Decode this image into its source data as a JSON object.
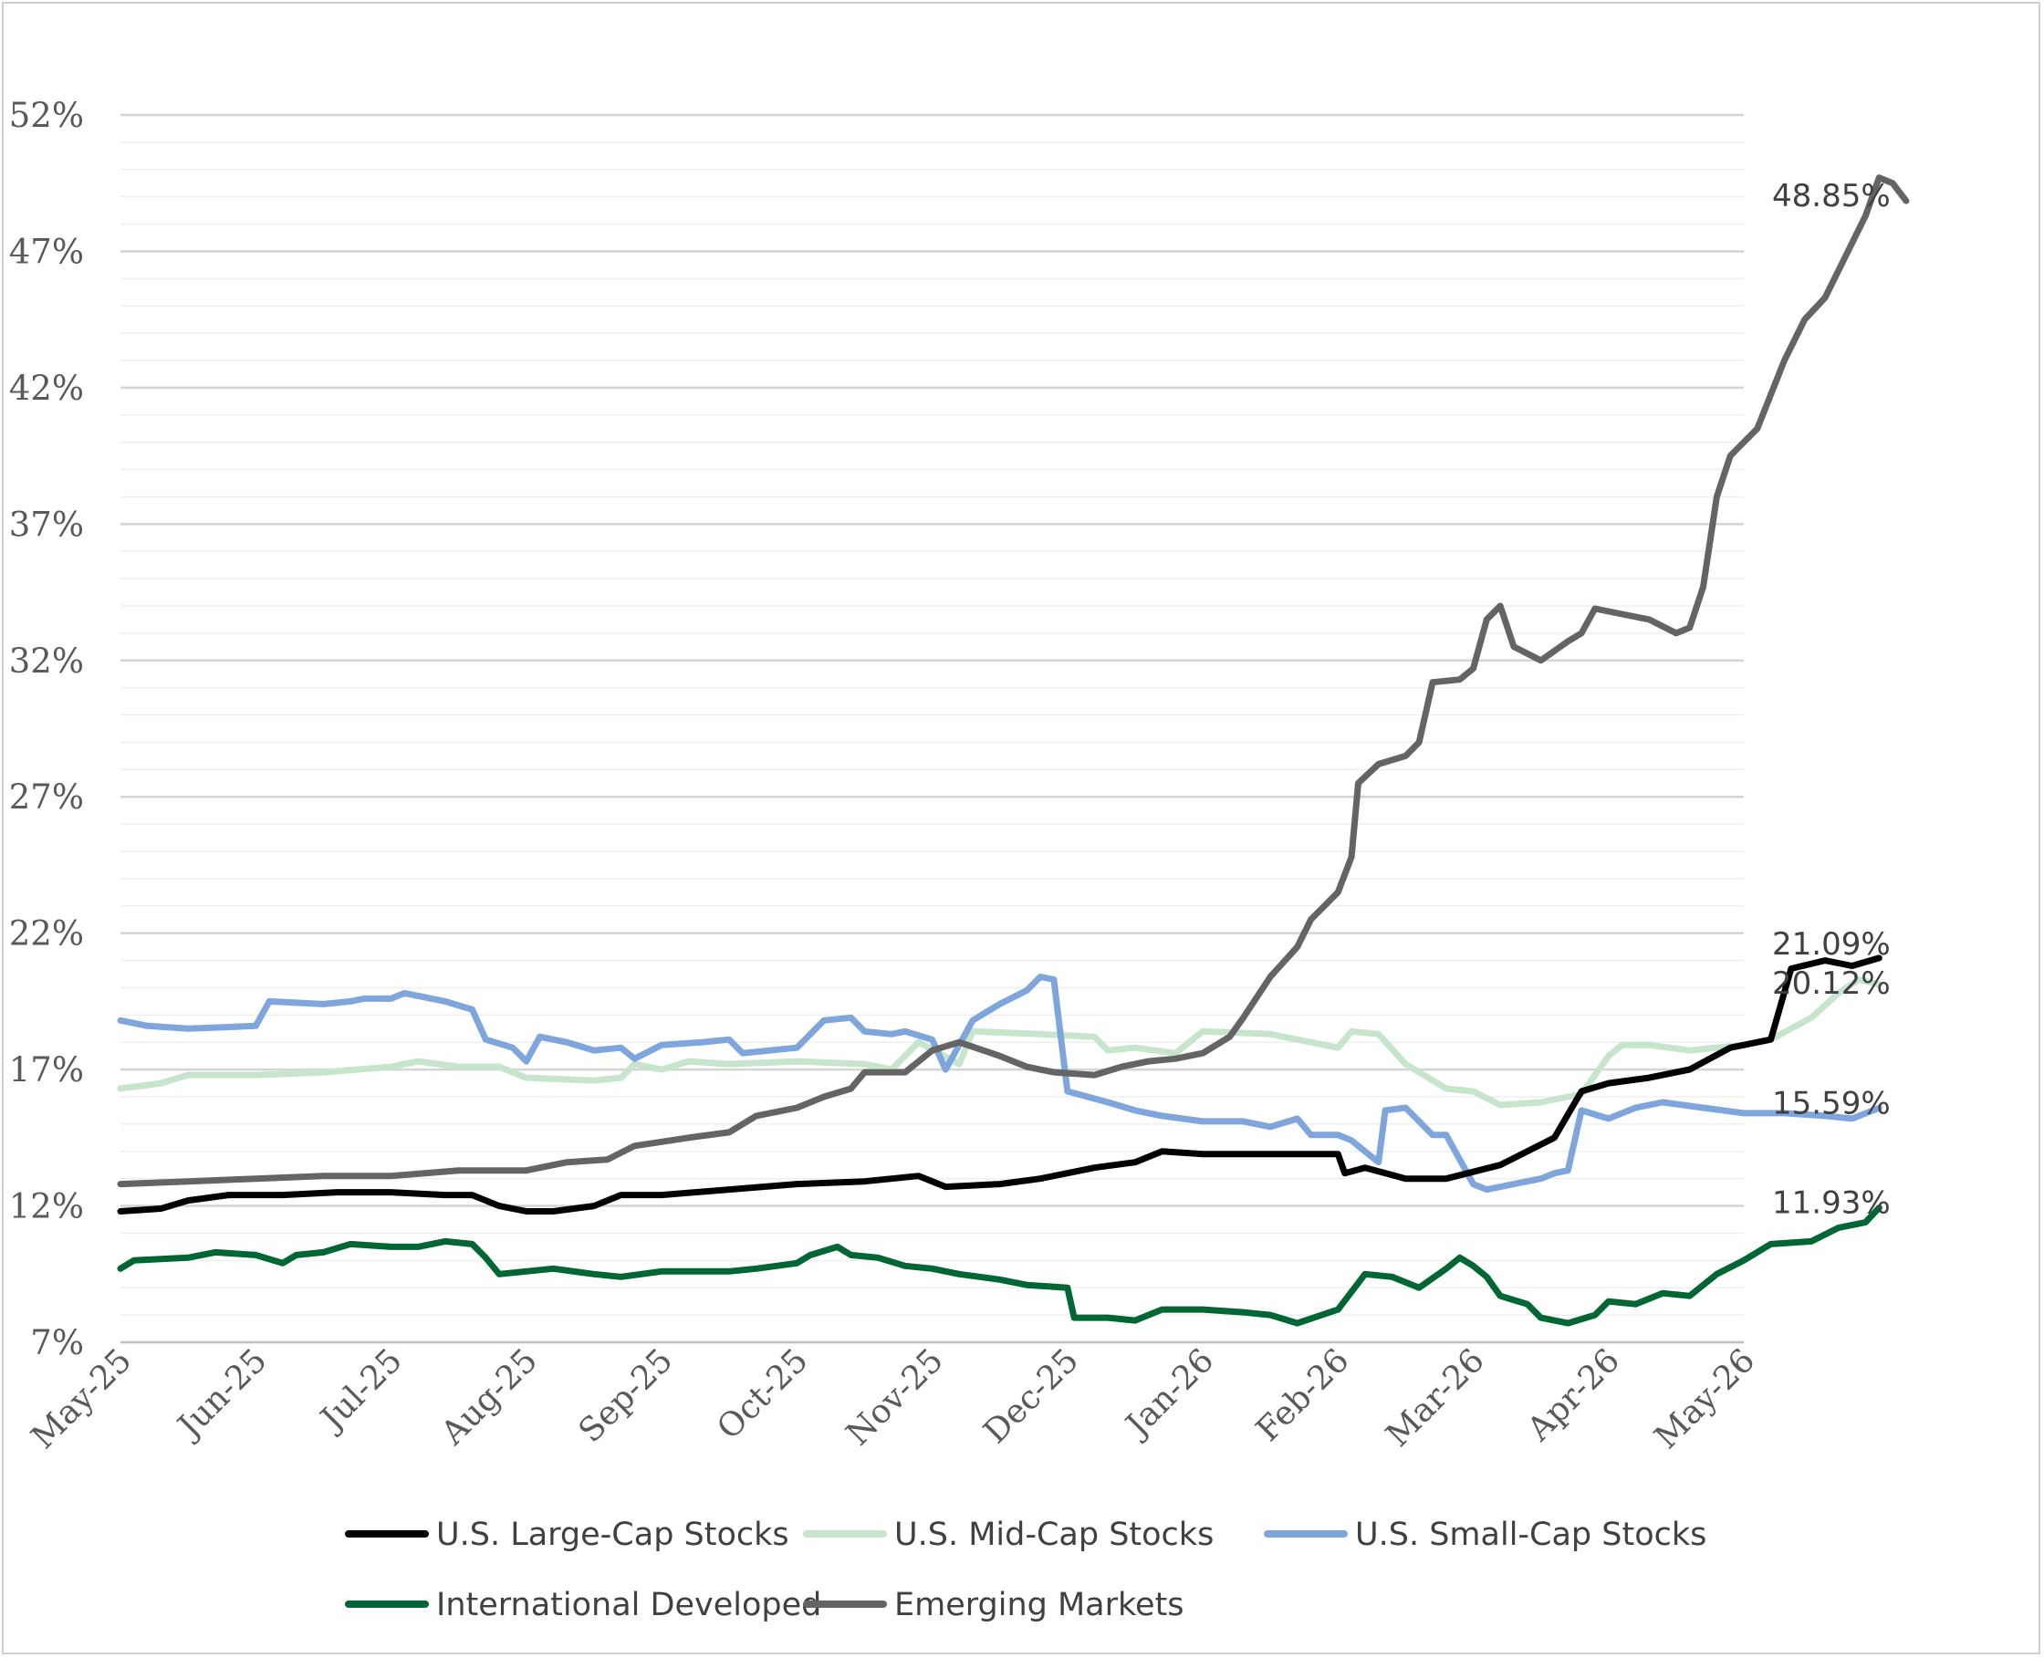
{
  "chart_data": {
    "type": "line",
    "title": "",
    "xlabel": "",
    "ylabel": "",
    "x_ticks": [
      "May-25",
      "Jun-25",
      "Jul-25",
      "Aug-25",
      "Sep-25",
      "Oct-25",
      "Nov-25",
      "Dec-25",
      "Jan-26",
      "Feb-26",
      "Mar-26",
      "Apr-26",
      "May-26"
    ],
    "y_ticks": [
      "7%",
      "12%",
      "17%",
      "22%",
      "27%",
      "32%",
      "37%",
      "42%",
      "47%",
      "52%"
    ],
    "ylim": [
      7,
      52
    ],
    "grid": true,
    "legend_position": "bottom",
    "series": [
      {
        "name": "U.S. Large-Cap Stocks",
        "color": "#000000",
        "end_label": "21.09%",
        "points": [
          [
            0,
            11.8
          ],
          [
            0.3,
            11.9
          ],
          [
            0.5,
            12.2
          ],
          [
            0.8,
            12.4
          ],
          [
            1.2,
            12.4
          ],
          [
            1.6,
            12.5
          ],
          [
            2.0,
            12.5
          ],
          [
            2.4,
            12.4
          ],
          [
            2.6,
            12.4
          ],
          [
            2.8,
            12.0
          ],
          [
            3.0,
            11.8
          ],
          [
            3.2,
            11.8
          ],
          [
            3.5,
            12.0
          ],
          [
            3.7,
            12.4
          ],
          [
            4.0,
            12.4
          ],
          [
            4.5,
            12.6
          ],
          [
            5.0,
            12.8
          ],
          [
            5.5,
            12.9
          ],
          [
            5.9,
            13.1
          ],
          [
            6.1,
            12.7
          ],
          [
            6.5,
            12.8
          ],
          [
            6.8,
            13.0
          ],
          [
            7.2,
            13.4
          ],
          [
            7.5,
            13.6
          ],
          [
            7.7,
            14.0
          ],
          [
            8.0,
            13.9
          ],
          [
            8.5,
            13.9
          ],
          [
            8.8,
            13.9
          ],
          [
            9.0,
            13.9
          ],
          [
            9.05,
            13.2
          ],
          [
            9.2,
            13.4
          ],
          [
            9.5,
            13.0
          ],
          [
            9.8,
            13.0
          ],
          [
            10.2,
            13.5
          ],
          [
            10.4,
            14.0
          ],
          [
            10.6,
            14.5
          ],
          [
            10.8,
            16.2
          ],
          [
            11.0,
            16.5
          ],
          [
            11.3,
            16.7
          ],
          [
            11.6,
            17.0
          ],
          [
            11.9,
            17.8
          ],
          [
            12.2,
            18.1
          ],
          [
            12.35,
            20.7
          ],
          [
            12.6,
            21.0
          ],
          [
            12.8,
            20.8
          ],
          [
            13.0,
            21.09
          ]
        ]
      },
      {
        "name": "U.S. Mid-Cap Stocks",
        "color": "#c6e5cc",
        "end_label": "20.12%",
        "points": [
          [
            0,
            16.3
          ],
          [
            0.3,
            16.5
          ],
          [
            0.5,
            16.8
          ],
          [
            1.0,
            16.8
          ],
          [
            1.5,
            16.9
          ],
          [
            2.0,
            17.1
          ],
          [
            2.2,
            17.3
          ],
          [
            2.5,
            17.1
          ],
          [
            2.8,
            17.1
          ],
          [
            3.0,
            16.7
          ],
          [
            3.5,
            16.6
          ],
          [
            3.7,
            16.7
          ],
          [
            3.8,
            17.2
          ],
          [
            4.0,
            17.0
          ],
          [
            4.2,
            17.3
          ],
          [
            4.5,
            17.2
          ],
          [
            5.0,
            17.3
          ],
          [
            5.5,
            17.2
          ],
          [
            5.7,
            17.0
          ],
          [
            5.9,
            18.0
          ],
          [
            6.2,
            17.2
          ],
          [
            6.3,
            18.4
          ],
          [
            6.8,
            18.3
          ],
          [
            7.2,
            18.2
          ],
          [
            7.3,
            17.7
          ],
          [
            7.5,
            17.8
          ],
          [
            7.8,
            17.6
          ],
          [
            8.0,
            18.4
          ],
          [
            8.5,
            18.3
          ],
          [
            8.8,
            18.0
          ],
          [
            9.0,
            17.8
          ],
          [
            9.1,
            18.4
          ],
          [
            9.3,
            18.3
          ],
          [
            9.5,
            17.2
          ],
          [
            9.8,
            16.3
          ],
          [
            10.0,
            16.2
          ],
          [
            10.2,
            15.7
          ],
          [
            10.5,
            15.8
          ],
          [
            10.8,
            16.1
          ],
          [
            11.0,
            17.5
          ],
          [
            11.1,
            17.9
          ],
          [
            11.3,
            17.9
          ],
          [
            11.6,
            17.7
          ],
          [
            12.0,
            17.9
          ],
          [
            12.2,
            18.1
          ],
          [
            12.5,
            18.9
          ],
          [
            12.7,
            19.8
          ],
          [
            12.85,
            20.3
          ],
          [
            13.0,
            20.12
          ]
        ]
      },
      {
        "name": "U.S. Small-Cap Stocks",
        "color": "#7ea6dc",
        "end_label": "15.59%",
        "points": [
          [
            0,
            18.8
          ],
          [
            0.2,
            18.6
          ],
          [
            0.5,
            18.5
          ],
          [
            1.0,
            18.6
          ],
          [
            1.1,
            19.5
          ],
          [
            1.5,
            19.4
          ],
          [
            1.7,
            19.5
          ],
          [
            1.8,
            19.6
          ],
          [
            2.0,
            19.6
          ],
          [
            2.1,
            19.8
          ],
          [
            2.3,
            19.6
          ],
          [
            2.4,
            19.5
          ],
          [
            2.6,
            19.2
          ],
          [
            2.7,
            18.1
          ],
          [
            2.9,
            17.8
          ],
          [
            3.0,
            17.3
          ],
          [
            3.1,
            18.2
          ],
          [
            3.3,
            18.0
          ],
          [
            3.5,
            17.7
          ],
          [
            3.7,
            17.8
          ],
          [
            3.8,
            17.4
          ],
          [
            4.0,
            17.9
          ],
          [
            4.3,
            18.0
          ],
          [
            4.5,
            18.1
          ],
          [
            4.6,
            17.6
          ],
          [
            5.0,
            17.8
          ],
          [
            5.2,
            18.8
          ],
          [
            5.4,
            18.9
          ],
          [
            5.5,
            18.4
          ],
          [
            5.7,
            18.3
          ],
          [
            5.8,
            18.4
          ],
          [
            6.0,
            18.1
          ],
          [
            6.1,
            17.0
          ],
          [
            6.3,
            18.8
          ],
          [
            6.5,
            19.4
          ],
          [
            6.7,
            19.9
          ],
          [
            6.8,
            20.4
          ],
          [
            6.9,
            20.3
          ],
          [
            7.0,
            16.2
          ],
          [
            7.3,
            15.8
          ],
          [
            7.5,
            15.5
          ],
          [
            7.7,
            15.3
          ],
          [
            8.0,
            15.1
          ],
          [
            8.3,
            15.1
          ],
          [
            8.5,
            14.9
          ],
          [
            8.7,
            15.2
          ],
          [
            8.8,
            14.6
          ],
          [
            9.0,
            14.6
          ],
          [
            9.1,
            14.4
          ],
          [
            9.2,
            14.0
          ],
          [
            9.3,
            13.6
          ],
          [
            9.35,
            15.5
          ],
          [
            9.5,
            15.6
          ],
          [
            9.7,
            14.6
          ],
          [
            9.8,
            14.6
          ],
          [
            10.0,
            12.8
          ],
          [
            10.1,
            12.6
          ],
          [
            10.3,
            12.8
          ],
          [
            10.5,
            13.0
          ],
          [
            10.6,
            13.2
          ],
          [
            10.7,
            13.3
          ],
          [
            10.8,
            15.5
          ],
          [
            11.0,
            15.2
          ],
          [
            11.2,
            15.6
          ],
          [
            11.4,
            15.8
          ],
          [
            11.7,
            15.6
          ],
          [
            12.0,
            15.4
          ],
          [
            12.3,
            15.4
          ],
          [
            12.6,
            15.3
          ],
          [
            12.8,
            15.2
          ],
          [
            13.0,
            15.59
          ]
        ]
      },
      {
        "name": "International Developed",
        "color": "#006633",
        "end_label": "11.93%",
        "points": [
          [
            0,
            9.7
          ],
          [
            0.1,
            10.0
          ],
          [
            0.5,
            10.1
          ],
          [
            0.7,
            10.3
          ],
          [
            1.0,
            10.2
          ],
          [
            1.2,
            9.9
          ],
          [
            1.3,
            10.2
          ],
          [
            1.5,
            10.3
          ],
          [
            1.7,
            10.6
          ],
          [
            2.0,
            10.5
          ],
          [
            2.2,
            10.5
          ],
          [
            2.4,
            10.7
          ],
          [
            2.6,
            10.6
          ],
          [
            2.7,
            10.1
          ],
          [
            2.8,
            9.5
          ],
          [
            3.0,
            9.6
          ],
          [
            3.2,
            9.7
          ],
          [
            3.5,
            9.5
          ],
          [
            3.7,
            9.4
          ],
          [
            4.0,
            9.6
          ],
          [
            4.5,
            9.6
          ],
          [
            4.7,
            9.7
          ],
          [
            5.0,
            9.9
          ],
          [
            5.1,
            10.2
          ],
          [
            5.3,
            10.5
          ],
          [
            5.4,
            10.2
          ],
          [
            5.6,
            10.1
          ],
          [
            5.8,
            9.8
          ],
          [
            6.0,
            9.7
          ],
          [
            6.2,
            9.5
          ],
          [
            6.5,
            9.3
          ],
          [
            6.7,
            9.1
          ],
          [
            7.0,
            9.0
          ],
          [
            7.05,
            7.9
          ],
          [
            7.3,
            7.9
          ],
          [
            7.5,
            7.8
          ],
          [
            7.7,
            8.2
          ],
          [
            8.0,
            8.2
          ],
          [
            8.3,
            8.1
          ],
          [
            8.5,
            8.0
          ],
          [
            8.7,
            7.7
          ],
          [
            9.0,
            8.2
          ],
          [
            9.2,
            9.5
          ],
          [
            9.4,
            9.4
          ],
          [
            9.6,
            9.0
          ],
          [
            9.8,
            9.7
          ],
          [
            9.9,
            10.1
          ],
          [
            10.0,
            9.8
          ],
          [
            10.1,
            9.4
          ],
          [
            10.2,
            8.7
          ],
          [
            10.4,
            8.4
          ],
          [
            10.5,
            7.9
          ],
          [
            10.7,
            7.7
          ],
          [
            10.9,
            8.0
          ],
          [
            11.0,
            8.5
          ],
          [
            11.2,
            8.4
          ],
          [
            11.4,
            8.8
          ],
          [
            11.6,
            8.7
          ],
          [
            11.8,
            9.5
          ],
          [
            12.0,
            10.0
          ],
          [
            12.2,
            10.6
          ],
          [
            12.5,
            10.7
          ],
          [
            12.7,
            11.2
          ],
          [
            12.9,
            11.4
          ],
          [
            13.0,
            11.93
          ]
        ]
      },
      {
        "name": "Emerging Markets",
        "color": "#646464",
        "end_label": "48.85%",
        "points": [
          [
            0,
            12.8
          ],
          [
            0.5,
            12.9
          ],
          [
            1.0,
            13.0
          ],
          [
            1.5,
            13.1
          ],
          [
            2.0,
            13.1
          ],
          [
            2.5,
            13.3
          ],
          [
            3.0,
            13.3
          ],
          [
            3.3,
            13.6
          ],
          [
            3.6,
            13.7
          ],
          [
            3.8,
            14.2
          ],
          [
            4.2,
            14.5
          ],
          [
            4.5,
            14.7
          ],
          [
            4.7,
            15.3
          ],
          [
            5.0,
            15.6
          ],
          [
            5.2,
            16.0
          ],
          [
            5.4,
            16.3
          ],
          [
            5.5,
            16.9
          ],
          [
            5.8,
            16.9
          ],
          [
            6.0,
            17.7
          ],
          [
            6.2,
            18.0
          ],
          [
            6.5,
            17.5
          ],
          [
            6.7,
            17.1
          ],
          [
            6.9,
            16.9
          ],
          [
            7.2,
            16.8
          ],
          [
            7.4,
            17.1
          ],
          [
            7.6,
            17.3
          ],
          [
            7.8,
            17.4
          ],
          [
            8.0,
            17.6
          ],
          [
            8.2,
            18.2
          ],
          [
            8.3,
            18.9
          ],
          [
            8.5,
            20.4
          ],
          [
            8.7,
            21.5
          ],
          [
            8.8,
            22.5
          ],
          [
            9.0,
            23.5
          ],
          [
            9.1,
            24.8
          ],
          [
            9.15,
            27.5
          ],
          [
            9.3,
            28.2
          ],
          [
            9.5,
            28.5
          ],
          [
            9.6,
            29.0
          ],
          [
            9.7,
            31.2
          ],
          [
            9.9,
            31.3
          ],
          [
            10.0,
            31.7
          ],
          [
            10.1,
            33.5
          ],
          [
            10.2,
            34.0
          ],
          [
            10.3,
            32.5
          ],
          [
            10.5,
            32.0
          ],
          [
            10.7,
            32.7
          ],
          [
            10.8,
            33.0
          ],
          [
            10.9,
            33.9
          ],
          [
            11.1,
            33.7
          ],
          [
            11.3,
            33.5
          ],
          [
            11.5,
            33.0
          ],
          [
            11.6,
            33.2
          ],
          [
            11.7,
            34.7
          ],
          [
            11.8,
            38.0
          ],
          [
            11.9,
            39.5
          ],
          [
            12.1,
            40.5
          ],
          [
            12.3,
            43.0
          ],
          [
            12.45,
            44.5
          ],
          [
            12.6,
            45.3
          ],
          [
            12.8,
            47.3
          ],
          [
            12.9,
            48.3
          ],
          [
            13.0,
            49.7
          ],
          [
            13.1,
            49.5
          ],
          [
            13.2,
            48.85
          ]
        ]
      }
    ]
  }
}
